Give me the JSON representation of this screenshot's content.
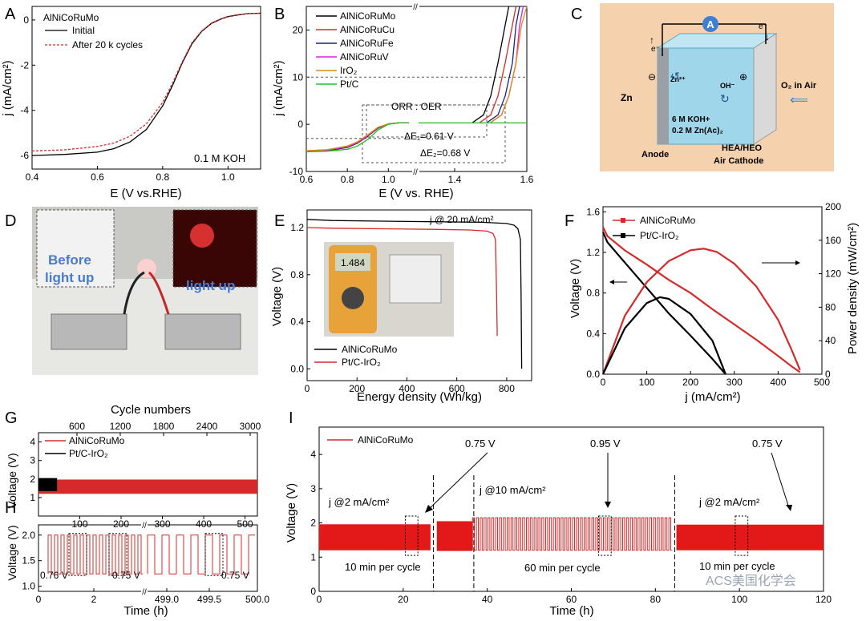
{
  "panels": {
    "A": {
      "letter": "A"
    },
    "B": {
      "letter": "B"
    },
    "C": {
      "letter": "C"
    },
    "D": {
      "letter": "D"
    },
    "E": {
      "letter": "E"
    },
    "F": {
      "letter": "F"
    },
    "G": {
      "letter": "G"
    },
    "H": {
      "letter": "H"
    },
    "I": {
      "letter": "I"
    }
  },
  "colors": {
    "black": "#000000",
    "red": "#d42a2a",
    "navy": "#1a237e",
    "purple": "#8a1ec2",
    "magenta": "#dd22dd",
    "orange": "#e08a14",
    "green": "#22bb22"
  },
  "panelA": {
    "title": "AlNiCoRuMo",
    "legend": [
      "Initial",
      "After 20 k cycles"
    ],
    "annotation": "0.1 M KOH"
  },
  "panelB": {
    "annot_orr_oer": "ORR : OER",
    "annot_de1": "ΔE₁=0.61 V",
    "annot_de2": "ΔE₂=0.68 V"
  },
  "panelC": {
    "ammeter": "A",
    "e_left": "e⁻",
    "e_right": "e⁻",
    "zn_label": "Zn",
    "zn2": "Zn²⁺",
    "oh": "OH⁻",
    "minus": "⊖",
    "plus": "⊕",
    "o2": "O₂ in Air",
    "electrolyte_1": "6 M KOH+",
    "electrolyte_2": "0.2 M Zn(Ac)₂",
    "anode": "Anode",
    "cathode_1": "HEA/HEO",
    "cathode_2": "Air Cathode"
  },
  "panelD": {
    "before_1": "Before",
    "before_2": "light up",
    "after": "light up"
  },
  "panelE": {
    "annotation": "j @ 20 mA/cm²",
    "meter_reading": "1.484"
  },
  "panelF": {},
  "panelG": {},
  "panelH": {
    "annot1": "0.76 V",
    "annot2": "0.75 V",
    "annot3": "0.75 V"
  },
  "panelI": {
    "legend": "AlNiCoRuMo",
    "seg1_label": "j @2 mA/cm²",
    "seg2_label": "j @10 mA/cm²",
    "seg3_label": "j @2 mA/cm²",
    "seg1_cycle": "10 min per cycle",
    "seg2_cycle": "60 min per cycle",
    "seg3_cycle": "10 min per cycle",
    "v1": "0.75 V",
    "v2": "0.95 V",
    "v3": "0.75 V"
  },
  "watermark": "ACS美国化学会",
  "chart_data": [
    {
      "id": "A",
      "type": "line",
      "xlabel": "E (V vs.RHE)",
      "ylabel": "j (mA/cm²)",
      "xlim": [
        0.4,
        1.1
      ],
      "ylim": [
        -6.6,
        0.6
      ],
      "xticks": [
        0.4,
        0.6,
        0.8,
        1.0
      ],
      "yticks": [
        0,
        -2,
        -4,
        -6
      ],
      "series": [
        {
          "name": "Initial",
          "color": "#000000",
          "dash": false,
          "x": [
            0.4,
            0.5,
            0.6,
            0.65,
            0.7,
            0.75,
            0.8,
            0.83,
            0.86,
            0.89,
            0.92,
            0.95,
            0.98,
            1.0,
            1.03,
            1.06,
            1.1
          ],
          "y": [
            -6.0,
            -5.95,
            -5.85,
            -5.7,
            -5.4,
            -4.85,
            -3.8,
            -2.9,
            -1.9,
            -1.05,
            -0.5,
            -0.15,
            0.05,
            0.15,
            0.22,
            0.28,
            0.3
          ]
        },
        {
          "name": "After 20 k cycles",
          "color": "#d42a2a",
          "dash": true,
          "x": [
            0.4,
            0.5,
            0.6,
            0.65,
            0.7,
            0.75,
            0.8,
            0.83,
            0.86,
            0.89,
            0.92,
            0.95,
            0.98,
            1.0,
            1.03,
            1.06,
            1.1
          ],
          "y": [
            -5.8,
            -5.75,
            -5.6,
            -5.45,
            -5.15,
            -4.6,
            -3.65,
            -2.8,
            -1.85,
            -1.0,
            -0.48,
            -0.13,
            0.06,
            0.16,
            0.23,
            0.28,
            0.3
          ]
        }
      ]
    },
    {
      "id": "B",
      "type": "line",
      "xlabel": "E (V vs. RHE)",
      "ylabel": "j (mA/cm²)",
      "xlim": [
        0.6,
        1.6
      ],
      "ylim": [
        -10,
        25
      ],
      "x_break": 1.12,
      "xticks": [
        0.6,
        0.8,
        1.0,
        1.4,
        1.6
      ],
      "yticks": [
        -10,
        0,
        10,
        20
      ],
      "series": [
        {
          "name": "AlNiCoRuMo",
          "color": "#000000",
          "x": [
            0.6,
            0.7,
            0.8,
            0.85,
            0.9,
            0.95,
            1.0,
            1.05,
            1.1,
            1.45,
            1.48,
            1.5,
            1.52,
            1.54,
            1.55
          ],
          "y": [
            -5.8,
            -5.6,
            -4.9,
            -4.0,
            -2.5,
            -0.8,
            0.1,
            0.3,
            0.3,
            0.4,
            2,
            6,
            13,
            21,
            25
          ]
        },
        {
          "name": "AlNiCoRuCu",
          "color": "#d42a2a",
          "x": [
            0.6,
            0.7,
            0.8,
            0.85,
            0.9,
            0.95,
            1.0,
            1.05,
            1.1,
            1.47,
            1.5,
            1.52,
            1.54,
            1.56,
            1.57
          ],
          "y": [
            -5.6,
            -5.4,
            -4.7,
            -3.8,
            -2.3,
            -0.7,
            0.1,
            0.3,
            0.3,
            0.4,
            2,
            6,
            13,
            21,
            25
          ]
        },
        {
          "name": "AlNiCoRuFe",
          "color": "#1a237e",
          "x": [
            0.6,
            0.7,
            0.8,
            0.85,
            0.9,
            0.95,
            1.0,
            1.05,
            1.1,
            1.49,
            1.52,
            1.54,
            1.56,
            1.57,
            1.58
          ],
          "y": [
            -5.7,
            -5.5,
            -4.8,
            -3.9,
            -2.4,
            -0.7,
            0.1,
            0.3,
            0.3,
            0.4,
            2,
            6,
            13,
            21,
            25
          ]
        },
        {
          "name": "AlNiCoRuV",
          "color": "#dd22dd",
          "x": [
            0.6,
            0.7,
            0.8,
            0.85,
            0.9,
            0.95,
            1.0,
            1.05,
            1.1,
            1.5,
            1.53,
            1.55,
            1.57,
            1.58,
            1.59
          ],
          "y": [
            -5.7,
            -5.5,
            -4.8,
            -3.9,
            -2.4,
            -0.7,
            0.1,
            0.3,
            0.3,
            0.4,
            2,
            6,
            13,
            21,
            25
          ]
        },
        {
          "name": "IrO₂",
          "color": "#e08a14",
          "x": [
            0.6,
            0.7,
            0.8,
            0.85,
            0.9,
            0.95,
            1.0,
            1.05,
            1.1,
            1.5,
            1.53,
            1.55,
            1.57,
            1.585,
            1.6
          ],
          "y": [
            -5.6,
            -5.4,
            -4.6,
            -3.7,
            -2.2,
            -0.6,
            0.1,
            0.3,
            0.3,
            0.4,
            2,
            6,
            13,
            21,
            25
          ]
        },
        {
          "name": "Pt/C",
          "color": "#22bb22",
          "x": [
            0.6,
            0.7,
            0.8,
            0.85,
            0.9,
            0.95,
            1.0,
            1.05,
            1.1,
            1.3,
            1.45,
            1.55,
            1.6
          ],
          "y": [
            -5.8,
            -5.7,
            -5.3,
            -4.6,
            -3.2,
            -1.2,
            0.0,
            0.3,
            0.3,
            0.3,
            0.3,
            0.3,
            0.3
          ]
        }
      ]
    },
    {
      "id": "E",
      "type": "line",
      "xlabel": "Energy density (Wh/kg)",
      "ylabel": "Voltage (V)",
      "xlim": [
        0,
        900
      ],
      "ylim": [
        -0.1,
        1.35
      ],
      "xticks": [
        0,
        200,
        400,
        600,
        800
      ],
      "yticks": [
        0.0,
        0.4,
        0.8,
        1.2
      ],
      "series": [
        {
          "name": "AlNiCoRuMo",
          "color": "#000000",
          "x": [
            0,
            100,
            300,
            500,
            700,
            800,
            830,
            845,
            855,
            858,
            860
          ],
          "y": [
            1.27,
            1.26,
            1.255,
            1.25,
            1.245,
            1.235,
            1.22,
            1.19,
            1.1,
            0.6,
            0.0
          ]
        },
        {
          "name": "Pt/C-IrO₂",
          "color": "#d42a2a",
          "x": [
            0,
            100,
            300,
            500,
            650,
            720,
            745,
            755,
            760,
            762
          ],
          "y": [
            1.2,
            1.195,
            1.19,
            1.185,
            1.18,
            1.17,
            1.15,
            1.1,
            0.6,
            0.28
          ]
        }
      ]
    },
    {
      "id": "F",
      "type": "line",
      "xlabel": "j (mA/cm²)",
      "ylabel": "Voltage (V)",
      "ylabel_right": "Power density (mW/cm²)",
      "xlim": [
        0,
        500
      ],
      "ylim": [
        0,
        1.65
      ],
      "ylim_right": [
        0,
        200
      ],
      "xticks": [
        0,
        100,
        200,
        300,
        400,
        500
      ],
      "yticks": [
        0.0,
        0.4,
        0.8,
        1.2,
        1.6
      ],
      "yticks_right": [
        0,
        40,
        80,
        120,
        160,
        200
      ],
      "series": [
        {
          "name": "AlNiCoRuMo",
          "color": "#d42a2a",
          "axis": "left",
          "x": [
            0,
            10,
            50,
            100,
            150,
            200,
            250,
            300,
            350,
            400,
            430,
            450
          ],
          "y": [
            1.45,
            1.36,
            1.22,
            1.08,
            0.93,
            0.8,
            0.64,
            0.49,
            0.34,
            0.18,
            0.08,
            0.02
          ]
        },
        {
          "name": "Pt/C-IrO₂",
          "color": "#000000",
          "axis": "left",
          "x": [
            0,
            10,
            50,
            100,
            150,
            200,
            250,
            270,
            280
          ],
          "y": [
            1.4,
            1.3,
            1.1,
            0.85,
            0.6,
            0.38,
            0.15,
            0.05,
            0.0
          ]
        },
        {
          "name": "AlNiCoRuMo power",
          "color": "#d42a2a",
          "axis": "right",
          "x": [
            0,
            50,
            100,
            150,
            200,
            230,
            260,
            300,
            350,
            400,
            430,
            450
          ],
          "y": [
            0,
            70,
            110,
            135,
            148,
            150,
            146,
            132,
            105,
            65,
            30,
            5
          ]
        },
        {
          "name": "Pt/C-IrO₂ power",
          "color": "#000000",
          "axis": "right",
          "x": [
            0,
            50,
            100,
            130,
            150,
            200,
            250,
            280
          ],
          "y": [
            0,
            55,
            85,
            92,
            90,
            72,
            40,
            0
          ]
        }
      ]
    },
    {
      "id": "G",
      "type": "area",
      "xlabel_top": "Cycle numbers",
      "ylabel": "Voltage (V)",
      "xlim": [
        0,
        530
      ],
      "ylim": [
        0,
        4.5
      ],
      "xticks": [
        100,
        200,
        300,
        400,
        500
      ],
      "xticks_top": [
        600,
        1200,
        1800,
        2400,
        3000
      ],
      "yticks": [
        1,
        2,
        3,
        4
      ],
      "legend": [
        "AlNiCoRuMo",
        "Pt/C-IrO₂"
      ],
      "bands": [
        {
          "name": "AlNiCoRuMo",
          "color": "#d42a2a",
          "x": [
            0,
            530
          ],
          "ymin": 1.2,
          "ymax": 1.97
        },
        {
          "name": "Pt/C-IrO₂",
          "color": "#000000",
          "x": [
            0,
            45
          ],
          "ymin": 1.35,
          "ymax": 2.05
        }
      ]
    },
    {
      "id": "H",
      "type": "line",
      "xlabel": "Time (h)",
      "ylabel": "Voltage (V)",
      "ylim": [
        0.9,
        2.2
      ],
      "yticks": [
        1.0,
        1.5,
        2.0
      ],
      "xticks": [
        "0",
        "2",
        "499.0",
        "499.5",
        "500.0"
      ],
      "series": [
        {
          "name": "AlNiCoRuMo",
          "color": "#d42a2a",
          "v_low": 1.24,
          "v_high": 2.0
        }
      ]
    },
    {
      "id": "I",
      "type": "area",
      "xlabel": "Time (h)",
      "ylabel": "Voltage (V)",
      "xlim": [
        0,
        120
      ],
      "ylim": [
        0,
        4.8
      ],
      "xticks": [
        0,
        20,
        40,
        60,
        80,
        100,
        120
      ],
      "yticks": [
        0,
        1,
        2,
        3,
        4
      ],
      "segments": [
        {
          "x": [
            0,
            26.5
          ],
          "ymin": 1.2,
          "ymax": 1.96,
          "current": "2 mA/cm²"
        },
        {
          "x": [
            28,
            36.5
          ],
          "ymin": 1.18,
          "ymax": 2.05,
          "current": "10 mA/cm²"
        },
        {
          "x": [
            36.5,
            84
          ],
          "ymin": 1.2,
          "ymax": 2.15,
          "current": "10 mA/cm²"
        },
        {
          "x": [
            85,
            120
          ],
          "ymin": 1.2,
          "ymax": 1.95,
          "current": "2 mA/cm²"
        }
      ]
    }
  ]
}
